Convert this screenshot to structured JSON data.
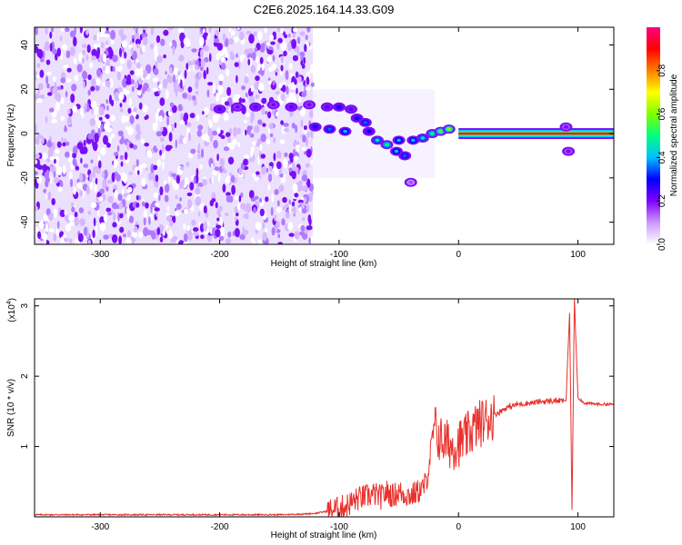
{
  "title": "C2E6.2025.164.14.33.G09",
  "chart_data": [
    {
      "type": "heatmap",
      "xlabel": "Height of straight line (km)",
      "ylabel": "Frequency (Hz)",
      "xlim": [
        -355,
        130
      ],
      "ylim": [
        -50,
        48
      ],
      "xticks": [
        -300,
        -200,
        -100,
        0,
        100
      ],
      "yticks": [
        -40,
        -20,
        0,
        20,
        40
      ],
      "colorbar": {
        "label": "Normalized spectral amplitude",
        "range": [
          0,
          1
        ],
        "ticks": [
          "0.0",
          "0.2",
          "0.4",
          "0.6",
          "0.8"
        ],
        "tick_values": [
          0,
          0.2,
          0.4,
          0.6,
          0.8
        ],
        "colors": [
          "#ffffff",
          "#cc99ff",
          "#7f00ff",
          "#0000ff",
          "#00bfff",
          "#00ff80",
          "#80ff00",
          "#ffff00",
          "#ff8000",
          "#ff0000",
          "#ff0080"
        ]
      },
      "noise_region": {
        "x": [
          -355,
          -122
        ],
        "y": [
          -50,
          48
        ]
      },
      "features": [
        {
          "x": -200,
          "y": 11,
          "amp": 0.25
        },
        {
          "x": -185,
          "y": 12,
          "amp": 0.22
        },
        {
          "x": -170,
          "y": 12,
          "amp": 0.25
        },
        {
          "x": -155,
          "y": 13,
          "amp": 0.22
        },
        {
          "x": -140,
          "y": 12,
          "amp": 0.25
        },
        {
          "x": -125,
          "y": 13,
          "amp": 0.22
        },
        {
          "x": -110,
          "y": 12,
          "amp": 0.25
        },
        {
          "x": -100,
          "y": 12,
          "amp": 0.3
        },
        {
          "x": -90,
          "y": 11,
          "amp": 0.25
        },
        {
          "x": -120,
          "y": 3,
          "amp": 0.3
        },
        {
          "x": -108,
          "y": 2,
          "amp": 0.35
        },
        {
          "x": -95,
          "y": 1,
          "amp": 0.4
        },
        {
          "x": -85,
          "y": 7,
          "amp": 0.3
        },
        {
          "x": -78,
          "y": 5,
          "amp": 0.35
        },
        {
          "x": -75,
          "y": 1,
          "amp": 0.3
        },
        {
          "x": -68,
          "y": -3,
          "amp": 0.45
        },
        {
          "x": -60,
          "y": -5,
          "amp": 0.5
        },
        {
          "x": -52,
          "y": -8,
          "amp": 0.4
        },
        {
          "x": -45,
          "y": -10,
          "amp": 0.35
        },
        {
          "x": -50,
          "y": -3,
          "amp": 0.4
        },
        {
          "x": -38,
          "y": -3,
          "amp": 0.4
        },
        {
          "x": -30,
          "y": -2,
          "amp": 0.45
        },
        {
          "x": -22,
          "y": 0,
          "amp": 0.5
        },
        {
          "x": -15,
          "y": 1,
          "amp": 0.55
        },
        {
          "x": -8,
          "y": 2,
          "amp": 0.6
        },
        {
          "x": -40,
          "y": -22,
          "amp": 0.15
        },
        {
          "x": 90,
          "y": 3,
          "amp": 0.2
        },
        {
          "x": 92,
          "y": -8,
          "amp": 0.2
        }
      ],
      "line": {
        "x": [
          0,
          130
        ],
        "y": 0,
        "amp": 0.95
      }
    },
    {
      "type": "line",
      "xlabel": "Height of straight line (km)",
      "ylabel": "SNR (10 * v/v)",
      "y_multiplier_label": "(x10^4)",
      "xlim": [
        -355,
        130
      ],
      "ylim": [
        0,
        3.1
      ],
      "xticks": [
        -300,
        -200,
        -100,
        0,
        100
      ],
      "yticks": [
        1,
        2,
        3
      ],
      "series": [
        {
          "color": "#e8302c",
          "x": [
            -355,
            -300,
            -250,
            -200,
            -150,
            -130,
            -120,
            -110,
            -100,
            -95,
            -90,
            -85,
            -80,
            -75,
            -70,
            -65,
            -60,
            -55,
            -50,
            -45,
            -40,
            -35,
            -30,
            -27,
            -25,
            -22,
            -20,
            -18,
            -15,
            -10,
            -5,
            0,
            5,
            10,
            15,
            20,
            25,
            30,
            35,
            40,
            45,
            50,
            60,
            70,
            80,
            85,
            90,
            93,
            95,
            97,
            100,
            105,
            110,
            120,
            130
          ],
          "values": [
            0.03,
            0.03,
            0.03,
            0.03,
            0.03,
            0.04,
            0.05,
            0.08,
            0.12,
            0.15,
            0.2,
            0.25,
            0.28,
            0.3,
            0.32,
            0.28,
            0.35,
            0.3,
            0.35,
            0.32,
            0.3,
            0.35,
            0.4,
            0.5,
            0.7,
            1.1,
            1.3,
            1.15,
            1.1,
            1.05,
            1.0,
            1.05,
            1.1,
            1.2,
            1.3,
            1.35,
            1.4,
            1.45,
            1.5,
            1.55,
            1.58,
            1.6,
            1.62,
            1.64,
            1.65,
            1.65,
            1.65,
            2.9,
            0.1,
            3.1,
            1.7,
            1.62,
            1.61,
            1.6,
            1.6
          ]
        }
      ]
    }
  ]
}
